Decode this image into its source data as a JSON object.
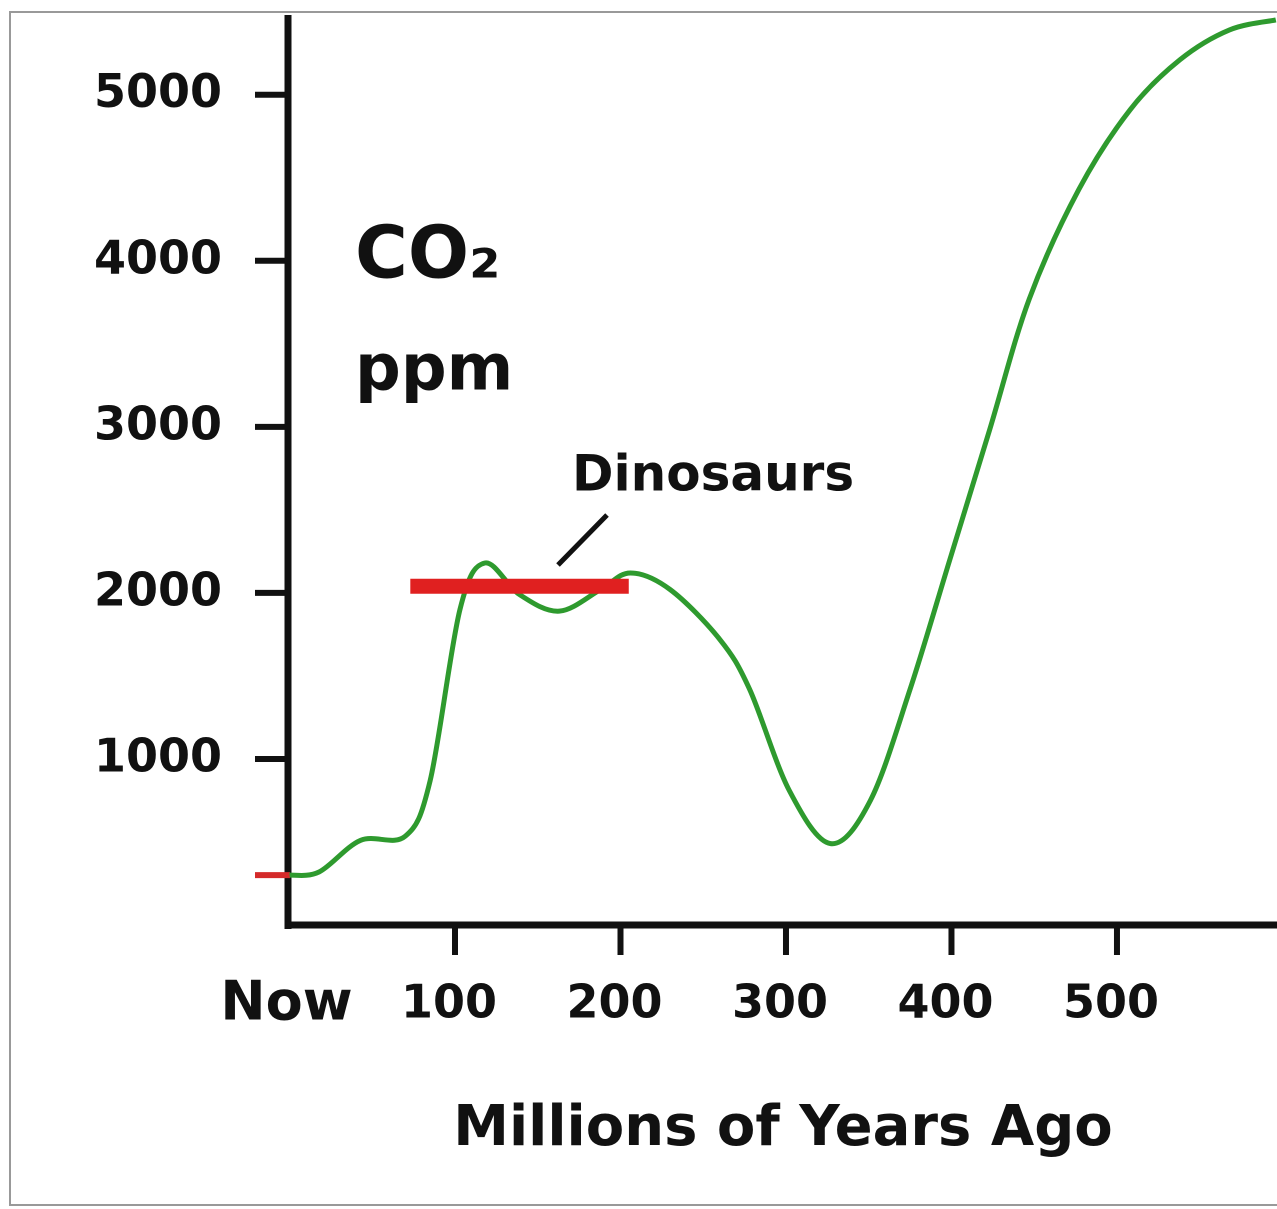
{
  "chart_data": {
    "type": "line",
    "ylabel": [
      "CO₂",
      "ppm"
    ],
    "xlabel": "Millions of Years Ago",
    "x": [
      0,
      18,
      43,
      70,
      85,
      103,
      118,
      139,
      163,
      188,
      206,
      230,
      260,
      278,
      302,
      327,
      351,
      375,
      399,
      423,
      447,
      477,
      508,
      538,
      568,
      596
    ],
    "series": [
      {
        "name": "CO₂",
        "color": "#2e9a2e",
        "values": [
          300,
          320,
          510,
          535,
          870,
          1900,
          2180,
          1990,
          1890,
          2020,
          2120,
          2020,
          1720,
          1420,
          810,
          490,
          750,
          1420,
          2200,
          2980,
          3770,
          4430,
          4910,
          5210,
          5390,
          5450
        ]
      }
    ],
    "xlim": [
      0,
      597
    ],
    "ylim": [
      0,
      5480
    ],
    "xticks": [
      {
        "value": 0,
        "label": "Now"
      },
      100,
      200,
      300,
      400,
      500
    ],
    "yticks": [
      1000,
      2000,
      3000,
      4000,
      5000
    ],
    "now_color": "#d42a2a",
    "now_marker": 300,
    "annotation": {
      "text": "Dinosaurs",
      "x_start": 73,
      "x_end": 205,
      "value": 2040,
      "color": "#e02020"
    }
  }
}
